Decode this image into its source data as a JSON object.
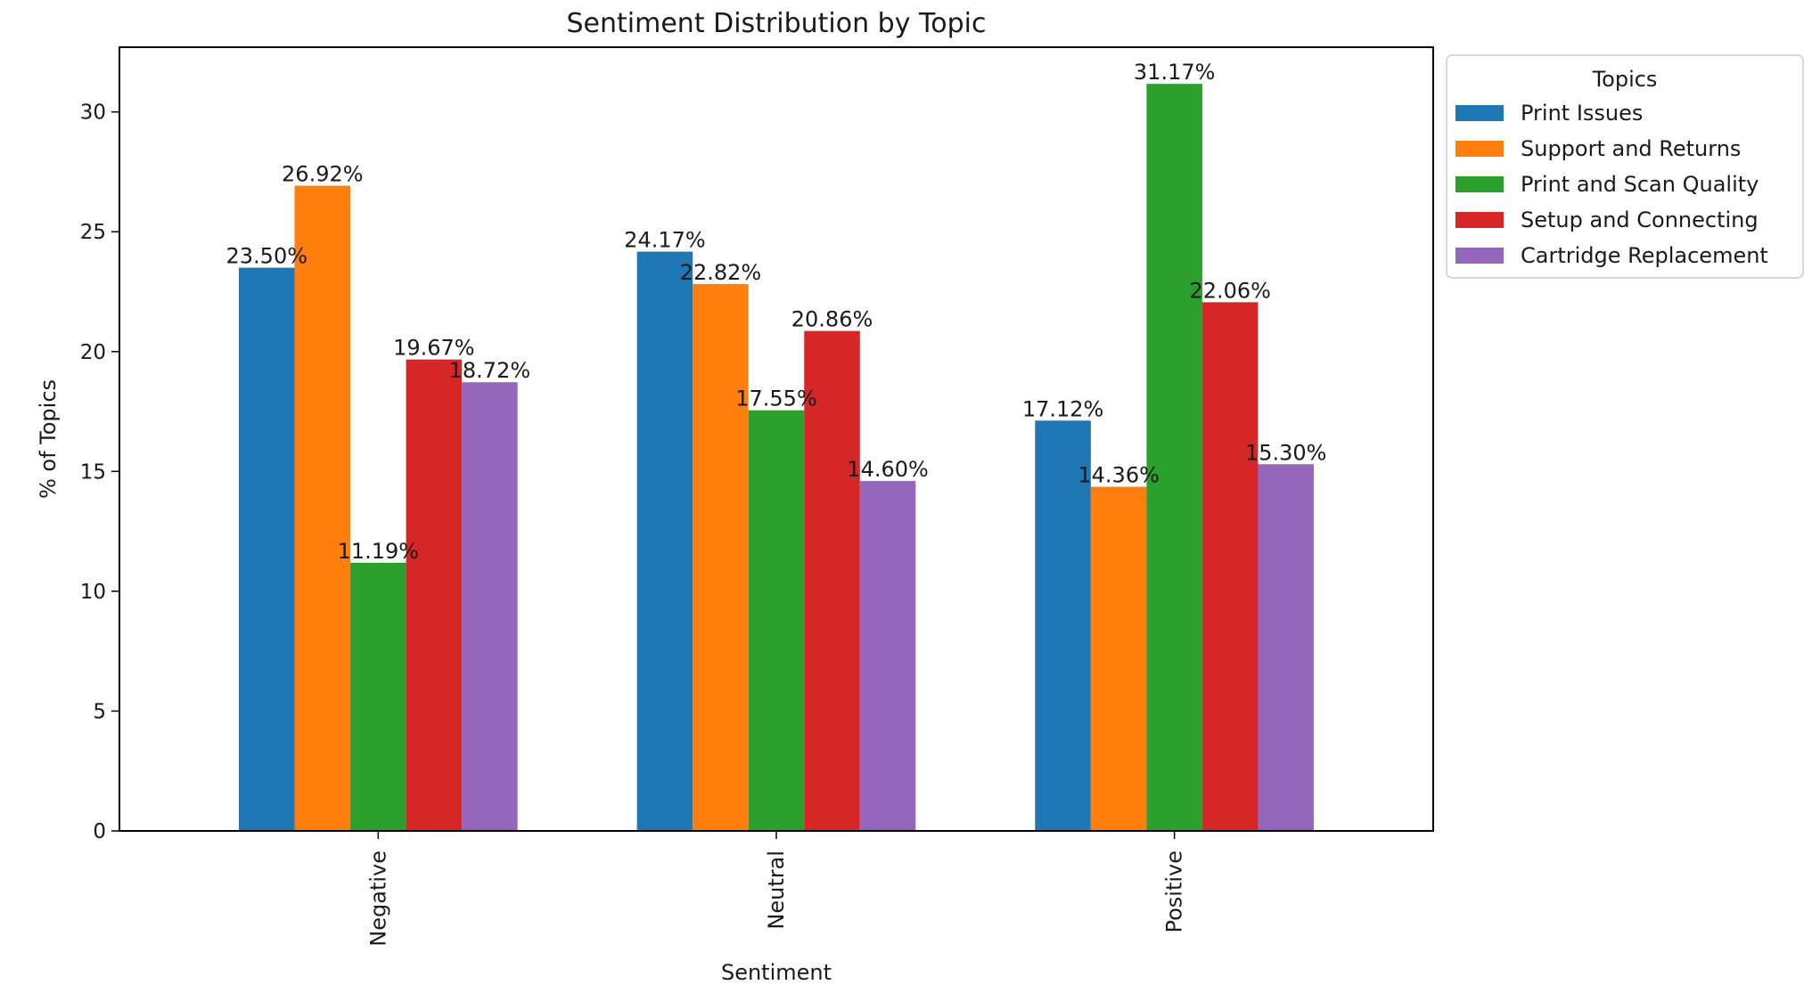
{
  "chart_data": {
    "type": "bar",
    "title": "Sentiment Distribution by Topic",
    "xlabel": "Sentiment",
    "ylabel": "% of Topics",
    "categories": [
      "Negative",
      "Neutral",
      "Positive"
    ],
    "ylim": [
      0,
      32.7
    ],
    "yticks": [
      0,
      5,
      10,
      15,
      20,
      25,
      30
    ],
    "grid": false,
    "legend": {
      "title": "Topics",
      "placement": "upper-right-outside"
    },
    "series": [
      {
        "name": "Print Issues",
        "color": "#1f77b4",
        "values": [
          23.5,
          24.17,
          17.12
        ],
        "labels": [
          "23.50%",
          "24.17%",
          "17.12%"
        ]
      },
      {
        "name": "Support and Returns",
        "color": "#ff7f0e",
        "values": [
          26.92,
          22.82,
          14.36
        ],
        "labels": [
          "26.92%",
          "22.82%",
          "14.36%"
        ]
      },
      {
        "name": "Print and Scan Quality",
        "color": "#2ca02c",
        "values": [
          11.19,
          17.55,
          31.17
        ],
        "labels": [
          "11.19%",
          "17.55%",
          "31.17%"
        ]
      },
      {
        "name": "Setup and Connecting",
        "color": "#d62728",
        "values": [
          19.67,
          20.86,
          22.06
        ],
        "labels": [
          "19.67%",
          "20.86%",
          "22.06%"
        ]
      },
      {
        "name": "Cartridge Replacement",
        "color": "#9467bd",
        "values": [
          18.72,
          14.6,
          15.3
        ],
        "labels": [
          "18.72%",
          "14.60%",
          "15.30%"
        ]
      }
    ]
  }
}
